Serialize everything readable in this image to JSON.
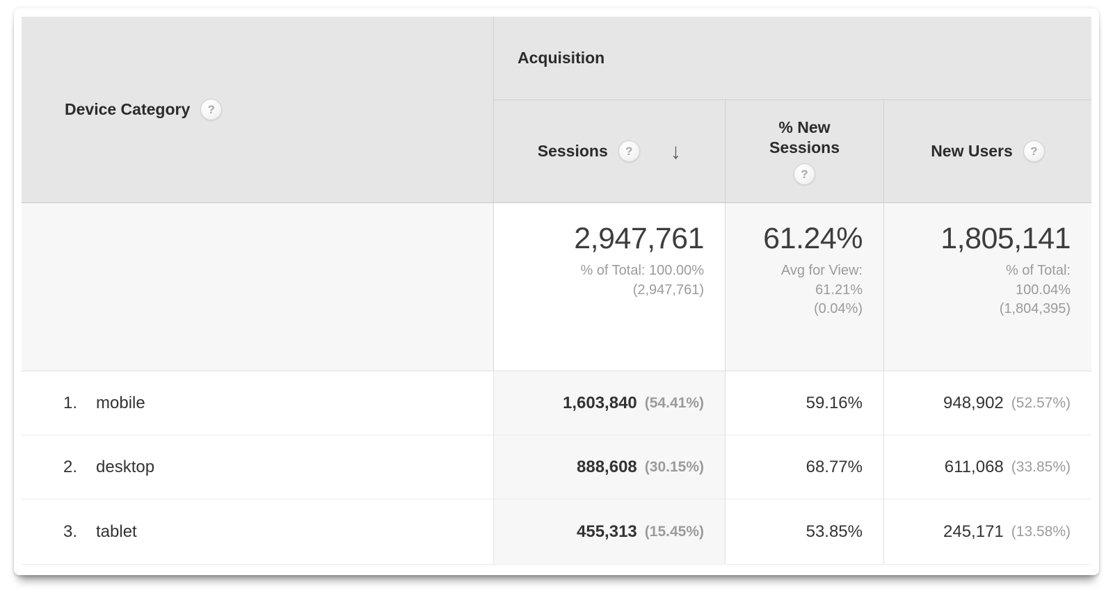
{
  "colors": {
    "header_bg": "#e6e6e6",
    "summary_row_bg": "#f7f7f7",
    "sorted_column_bg": "#f7f7f7",
    "text_primary": "#333333",
    "text_secondary": "#9b9b9b",
    "border_strong": "#c8c8c8",
    "border_light": "#ececec"
  },
  "icons": {
    "help": "?",
    "sort_desc": "↓"
  },
  "table": {
    "dimension_header": "Device Category",
    "group_header": "Acquisition",
    "columns": {
      "sessions": "Sessions",
      "pct_new_sessions": "% New Sessions",
      "new_users": "New Users"
    },
    "sorted_column": "Sessions",
    "sort_direction": "descending",
    "summary": {
      "sessions": {
        "value": "2,947,761",
        "line1": "% of Total: 100.00%",
        "line2": "(2,947,761)"
      },
      "pct_new_sessions": {
        "value": "61.24%",
        "line1": "Avg for View:",
        "line2": "61.21%",
        "line3": "(0.04%)"
      },
      "new_users": {
        "value": "1,805,141",
        "line1": "% of Total:",
        "line2": "100.04%",
        "line3": "(1,804,395)"
      }
    },
    "rows": [
      {
        "rank": "1.",
        "label": "mobile",
        "sessions": "1,603,840",
        "sessions_pct": "(54.41%)",
        "pct_new_sessions": "59.16%",
        "new_users": "948,902",
        "new_users_pct": "(52.57%)"
      },
      {
        "rank": "2.",
        "label": "desktop",
        "sessions": "888,608",
        "sessions_pct": "(30.15%)",
        "pct_new_sessions": "68.77%",
        "new_users": "611,068",
        "new_users_pct": "(33.85%)"
      },
      {
        "rank": "3.",
        "label": "tablet",
        "sessions": "455,313",
        "sessions_pct": "(15.45%)",
        "pct_new_sessions": "53.85%",
        "new_users": "245,171",
        "new_users_pct": "(13.58%)"
      }
    ]
  }
}
